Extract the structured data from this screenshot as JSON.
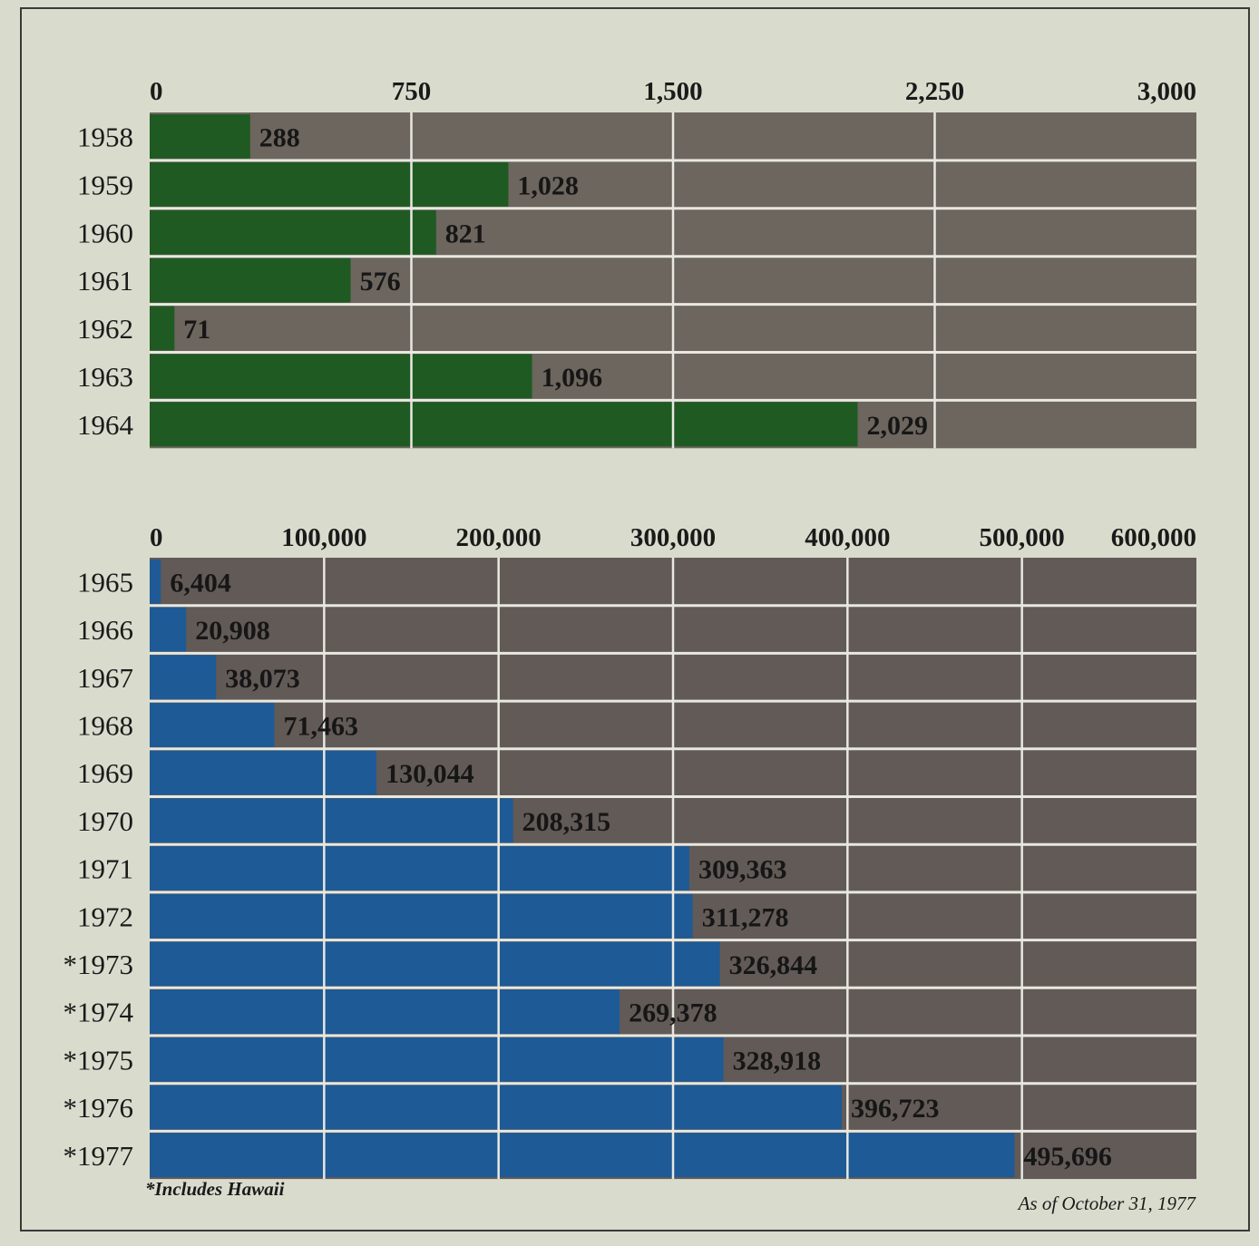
{
  "chart_data": [
    {
      "type": "bar",
      "orientation": "horizontal",
      "axis_position": "top",
      "xlim": [
        0,
        3000
      ],
      "ticks": [
        "0",
        "750",
        "1,500",
        "2,250",
        "3,000"
      ],
      "tick_values": [
        0,
        750,
        1500,
        2250,
        3000
      ],
      "categories": [
        "1958",
        "1959",
        "1960",
        "1961",
        "1962",
        "1963",
        "1964"
      ],
      "values": [
        288,
        1028,
        821,
        576,
        71,
        1096,
        2029
      ],
      "labels": [
        "288",
        "1,028",
        "821",
        "576",
        "71",
        "1,096",
        "2,029"
      ],
      "bar_color": "#1f5a22",
      "background_color": "#6d665e",
      "grid": true
    },
    {
      "type": "bar",
      "orientation": "horizontal",
      "axis_position": "top",
      "xlim": [
        0,
        600000
      ],
      "ticks": [
        "0",
        "100,000",
        "200,000",
        "300,000",
        "400,000",
        "500,000",
        "600,000"
      ],
      "tick_values": [
        0,
        100000,
        200000,
        300000,
        400000,
        500000,
        600000
      ],
      "categories": [
        "1965",
        "1966",
        "1967",
        "1968",
        "1969",
        "1970",
        "1971",
        "1972",
        "*1973",
        "*1974",
        "*1975",
        "*1976",
        "*1977"
      ],
      "values": [
        6404,
        20908,
        38073,
        71463,
        130044,
        208315,
        309363,
        311278,
        326844,
        269378,
        328918,
        396723,
        495696
      ],
      "labels": [
        "6,404",
        "20,908",
        "38,073",
        "71,463",
        "130,044",
        "208,315",
        "309,363",
        "311,278",
        "326,844",
        "269,378",
        "328,918",
        "396,723",
        "495,696"
      ],
      "bar_color": "#1d5a96",
      "background_color": "#625a56",
      "grid": true
    }
  ],
  "footnote": "*Includes Hawaii",
  "as_of": "As of October 31, 1977"
}
